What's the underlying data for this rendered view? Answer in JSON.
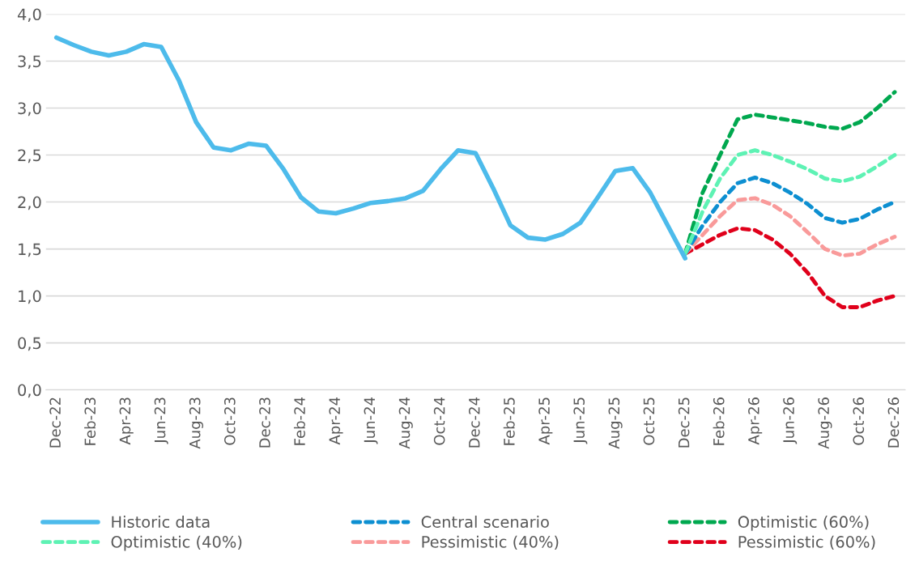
{
  "chart_data": {
    "type": "line",
    "categories": [
      "Dec-22",
      null,
      "Feb-23",
      null,
      "Apr-23",
      null,
      "Jun-23",
      null,
      "Aug-23",
      null,
      "Oct-23",
      null,
      "Dec-23",
      null,
      "Feb-24",
      null,
      "Apr-24",
      null,
      "Jun-24",
      null,
      "Aug-24",
      null,
      "Oct-24",
      null,
      "Dec-24",
      null,
      "Feb-25",
      null,
      "Apr-25",
      null,
      "Jun-25",
      null,
      "Aug-25",
      null,
      "Oct-25",
      null,
      "Dec-25",
      null,
      "Feb-26",
      null,
      "Apr-26",
      null,
      "Jun-26",
      null,
      "Aug-26",
      null,
      "Oct-26",
      null,
      "Dec-26"
    ],
    "ylim": [
      0,
      4
    ],
    "yticks": [
      {
        "value": 0,
        "label": "0,0"
      },
      {
        "value": 0.5,
        "label": "0,5"
      },
      {
        "value": 1,
        "label": "1,0"
      },
      {
        "value": 1.5,
        "label": "1,5"
      },
      {
        "value": 2,
        "label": "2,0"
      },
      {
        "value": 2.5,
        "label": "2,5"
      },
      {
        "value": 3,
        "label": "3,0"
      },
      {
        "value": 3.5,
        "label": "3,5"
      },
      {
        "value": 4,
        "label": "4,0"
      }
    ],
    "grid": "y",
    "legend": "bottom",
    "marker": "none",
    "series": [
      {
        "name": "Historic data",
        "color": "#4dbbeb",
        "line_style": "solid",
        "values": [
          3.75,
          3.67,
          3.6,
          3.56,
          3.6,
          3.68,
          3.65,
          3.3,
          2.85,
          2.58,
          2.55,
          2.62,
          2.6,
          2.35,
          2.05,
          1.9,
          1.88,
          1.93,
          1.99,
          2.01,
          2.04,
          2.12,
          2.35,
          2.55,
          2.52,
          2.15,
          1.75,
          1.62,
          1.6,
          1.66,
          1.78,
          2.05,
          2.33,
          2.36,
          2.1,
          1.75,
          1.4,
          null,
          null,
          null,
          null,
          null,
          null,
          null,
          null,
          null,
          null,
          null,
          null
        ]
      },
      {
        "name": "Optimistic (40%)",
        "color": "#5ef2b4",
        "line_style": "dashed",
        "values": [
          null,
          null,
          null,
          null,
          null,
          null,
          null,
          null,
          null,
          null,
          null,
          null,
          null,
          null,
          null,
          null,
          null,
          null,
          null,
          null,
          null,
          null,
          null,
          null,
          null,
          null,
          null,
          null,
          null,
          null,
          null,
          null,
          null,
          null,
          null,
          null,
          1.45,
          1.9,
          2.25,
          2.5,
          2.55,
          2.5,
          2.43,
          2.35,
          2.25,
          2.22,
          2.27,
          2.38,
          2.5
        ]
      },
      {
        "name": "Central scenario",
        "color": "#0d8fd1",
        "line_style": "dashed",
        "values": [
          null,
          null,
          null,
          null,
          null,
          null,
          null,
          null,
          null,
          null,
          null,
          null,
          null,
          null,
          null,
          null,
          null,
          null,
          null,
          null,
          null,
          null,
          null,
          null,
          null,
          null,
          null,
          null,
          null,
          null,
          null,
          null,
          null,
          null,
          null,
          null,
          1.45,
          1.75,
          2.0,
          2.2,
          2.26,
          2.2,
          2.1,
          1.98,
          1.83,
          1.78,
          1.82,
          1.92,
          2.0
        ]
      },
      {
        "name": "Pessimistic (40%)",
        "color": "#f99a9a",
        "line_style": "dashed",
        "values": [
          null,
          null,
          null,
          null,
          null,
          null,
          null,
          null,
          null,
          null,
          null,
          null,
          null,
          null,
          null,
          null,
          null,
          null,
          null,
          null,
          null,
          null,
          null,
          null,
          null,
          null,
          null,
          null,
          null,
          null,
          null,
          null,
          null,
          null,
          null,
          null,
          1.45,
          1.65,
          1.85,
          2.02,
          2.04,
          1.97,
          1.85,
          1.68,
          1.5,
          1.43,
          1.45,
          1.55,
          1.63
        ]
      },
      {
        "name": "Optimistic (60%)",
        "color": "#00a84f",
        "line_style": "dashed",
        "values": [
          null,
          null,
          null,
          null,
          null,
          null,
          null,
          null,
          null,
          null,
          null,
          null,
          null,
          null,
          null,
          null,
          null,
          null,
          null,
          null,
          null,
          null,
          null,
          null,
          null,
          null,
          null,
          null,
          null,
          null,
          null,
          null,
          null,
          null,
          null,
          null,
          1.45,
          2.1,
          2.5,
          2.88,
          2.93,
          2.9,
          2.87,
          2.84,
          2.8,
          2.78,
          2.85,
          3.0,
          3.17
        ]
      },
      {
        "name": "Pessimistic (60%)",
        "color": "#e0001b",
        "line_style": "dashed",
        "values": [
          null,
          null,
          null,
          null,
          null,
          null,
          null,
          null,
          null,
          null,
          null,
          null,
          null,
          null,
          null,
          null,
          null,
          null,
          null,
          null,
          null,
          null,
          null,
          null,
          null,
          null,
          null,
          null,
          null,
          null,
          null,
          null,
          null,
          null,
          null,
          null,
          1.45,
          1.55,
          1.65,
          1.72,
          1.7,
          1.6,
          1.45,
          1.25,
          1.0,
          0.88,
          0.88,
          0.95,
          1.0
        ]
      }
    ]
  }
}
